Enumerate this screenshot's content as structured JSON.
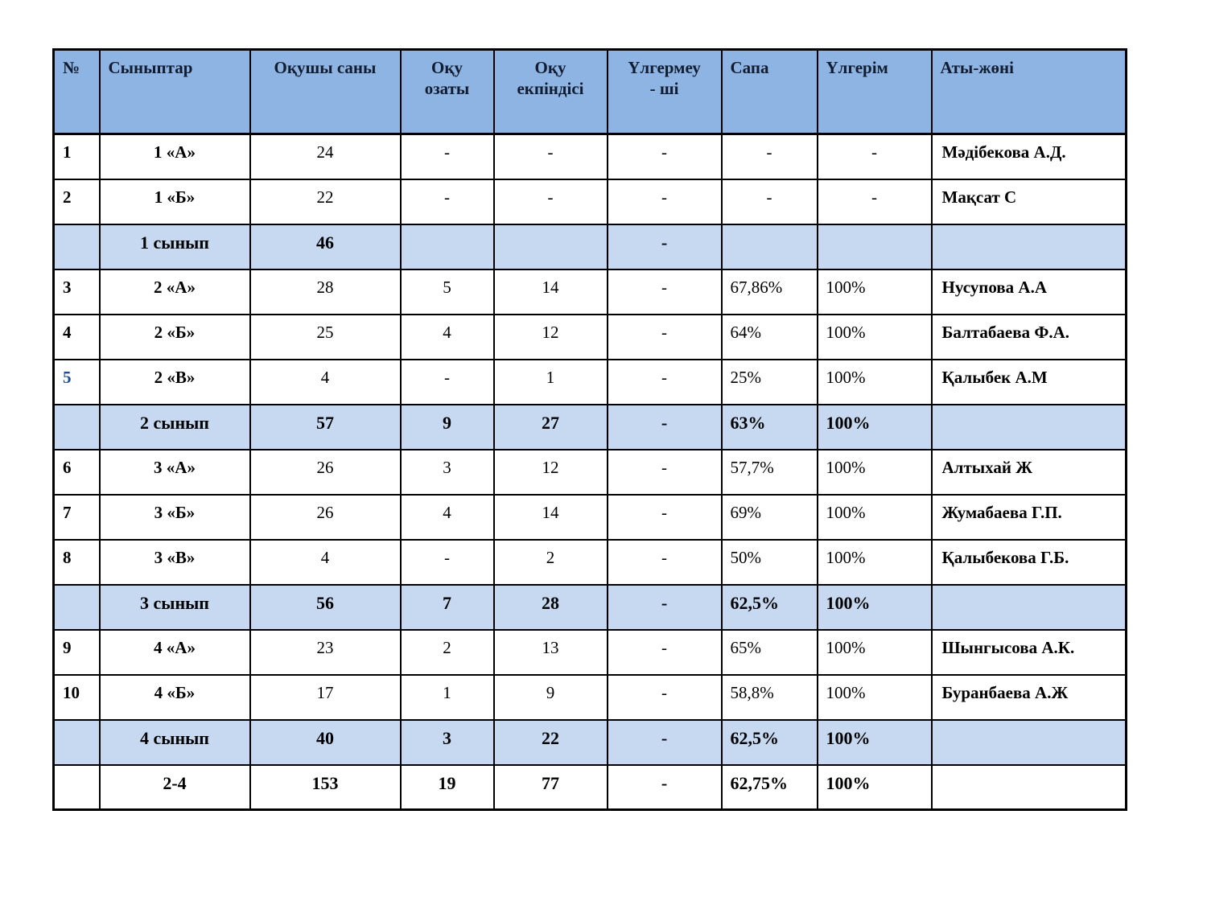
{
  "table": {
    "colors": {
      "header_bg": "#8DB4E2",
      "summary_bg": "#C6D9F1",
      "border": "#000000",
      "header_text": "#111c30",
      "highlight_row_number": "#1F4E8F"
    },
    "columns": [
      {
        "key": "num",
        "label": "№"
      },
      {
        "key": "class",
        "label": "Сыныптар"
      },
      {
        "key": "students",
        "label": "Оқушы саны"
      },
      {
        "key": "excellent",
        "label": "Оқу\nозаты"
      },
      {
        "key": "good",
        "label": "Оқу\nекпіндісі"
      },
      {
        "key": "failing",
        "label": "Үлгермеу\n- ші"
      },
      {
        "key": "quality",
        "label": "Сапа"
      },
      {
        "key": "performance",
        "label": "Үлгерім"
      },
      {
        "key": "teacher",
        "label": "Аты-жөні"
      }
    ],
    "rows": [
      {
        "type": "data",
        "num": "1",
        "class": "1 «А»",
        "students": "24",
        "excellent": "-",
        "good": "-",
        "failing": "-",
        "quality": "-",
        "performance": "-",
        "teacher": "Мәдібекова А.Д."
      },
      {
        "type": "data",
        "num": "2",
        "class": "1 «Б»",
        "students": "22",
        "excellent": "-",
        "good": "-",
        "failing": "-",
        "quality": "-",
        "performance": "-",
        "teacher": "Мақсат С"
      },
      {
        "type": "summary",
        "num": "",
        "class": "1 сынып",
        "students": "46",
        "excellent": "",
        "good": "",
        "failing": "-",
        "quality": "",
        "performance": "",
        "teacher": ""
      },
      {
        "type": "data",
        "num": "3",
        "class": "2 «А»",
        "students": "28",
        "excellent": "5",
        "good": "14",
        "failing": "-",
        "quality": "67,86%",
        "performance": "100%",
        "teacher": "Нусупова А.А"
      },
      {
        "type": "data",
        "num": "4",
        "class": "2 «Б»",
        "students": "25",
        "excellent": "4",
        "good": "12",
        "failing": "-",
        "quality": "64%",
        "performance": "100%",
        "teacher": "Балтабаева Ф.А."
      },
      {
        "type": "data",
        "num": "5",
        "num_color": "#1F4E8F",
        "class": "2 «В»",
        "students": "4",
        "excellent": "-",
        "good": "1",
        "failing": "-",
        "quality": "25%",
        "performance": "100%",
        "teacher": "Қалыбек А.М"
      },
      {
        "type": "summary",
        "num": "",
        "class": "2 сынып",
        "students": "57",
        "excellent": "9",
        "good": "27",
        "failing": "-",
        "quality": "63%",
        "performance": "100%",
        "teacher": ""
      },
      {
        "type": "data",
        "num": "6",
        "class": "3 «А»",
        "students": "26",
        "excellent": "3",
        "good": "12",
        "failing": "-",
        "quality": "57,7%",
        "performance": "100%",
        "teacher": "Алтыхай Ж"
      },
      {
        "type": "data",
        "num": "7",
        "class": "3 «Б»",
        "students": "26",
        "excellent": "4",
        "good": "14",
        "failing": "-",
        "quality": "69%",
        "performance": "100%",
        "teacher": "Жумабаева Г.П."
      },
      {
        "type": "data",
        "num": "8",
        "class": "3 «В»",
        "students": "4",
        "excellent": "-",
        "good": "2",
        "failing": "-",
        "quality": "50%",
        "performance": "100%",
        "teacher": "Қалыбекова Г.Б."
      },
      {
        "type": "summary",
        "num": "",
        "class": "3 сынып",
        "students": "56",
        "excellent": "7",
        "good": "28",
        "failing": "-",
        "quality": "62,5%",
        "performance": "100%",
        "teacher": ""
      },
      {
        "type": "data",
        "num": "9",
        "class": "4 «А»",
        "students": "23",
        "excellent": "2",
        "good": "13",
        "failing": "-",
        "quality": "65%",
        "performance": "100%",
        "teacher": "Шынгысова А.К."
      },
      {
        "type": "data",
        "num": "10",
        "class": "4 «Б»",
        "students": "17",
        "excellent": "1",
        "good": "9",
        "failing": "-",
        "quality": "58,8%",
        "performance": "100%",
        "teacher": "Буранбаева А.Ж"
      },
      {
        "type": "summary",
        "num": "",
        "class": "4 сынып",
        "students": "40",
        "excellent": "3",
        "good": "22",
        "failing": "-",
        "quality": "62,5%",
        "performance": "100%",
        "teacher": ""
      },
      {
        "type": "total",
        "num": "",
        "class": "2-4",
        "students": "153",
        "excellent": "19",
        "good": "77",
        "failing": "-",
        "quality": "62,75%",
        "performance": "100%",
        "teacher": ""
      }
    ]
  }
}
